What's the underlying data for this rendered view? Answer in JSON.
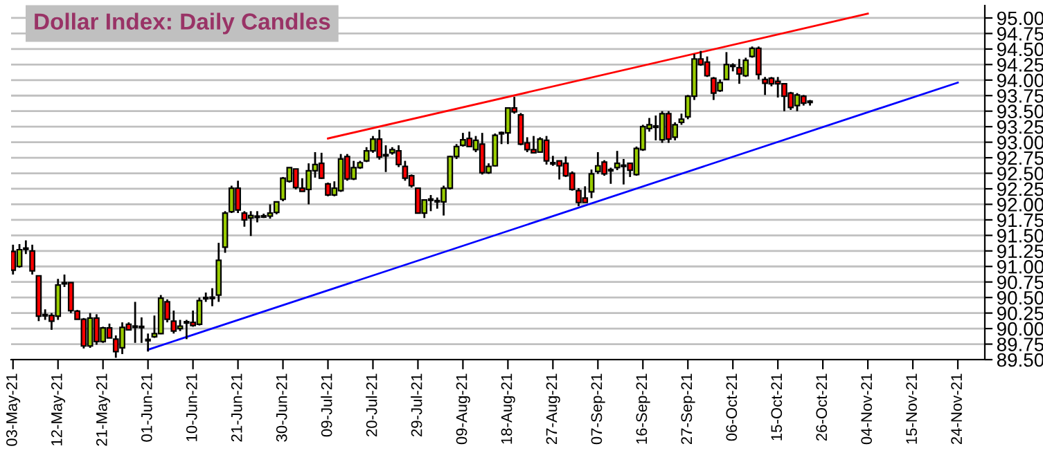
{
  "chart_data": {
    "type": "candlestick",
    "title": "Dollar Index: Daily Candles",
    "categories": [
      "03-May-21",
      null,
      null,
      null,
      null,
      null,
      null,
      "12-May-21",
      null,
      null,
      null,
      null,
      null,
      null,
      "21-May-21",
      null,
      null,
      null,
      null,
      null,
      null,
      "01-Jun-21",
      null,
      null,
      null,
      null,
      null,
      null,
      "10-Jun-21",
      null,
      null,
      null,
      null,
      null,
      null,
      "21-Jun-21",
      null,
      null,
      null,
      null,
      null,
      null,
      "30-Jun-21",
      null,
      null,
      null,
      null,
      null,
      null,
      "09-Jul-21",
      null,
      null,
      null,
      null,
      null,
      null,
      "20-Jul-21",
      null,
      null,
      null,
      null,
      null,
      null,
      "29-Jul-21",
      null,
      null,
      null,
      null,
      null,
      null,
      "09-Aug-21",
      null,
      null,
      null,
      null,
      null,
      null,
      "18-Aug-21",
      null,
      null,
      null,
      null,
      null,
      null,
      "27-Aug-21",
      null,
      null,
      null,
      null,
      null,
      null,
      "07-Sep-21",
      null,
      null,
      null,
      null,
      null,
      null,
      "16-Sep-21",
      null,
      null,
      null,
      null,
      null,
      null,
      "27-Sep-21",
      null,
      null,
      null,
      null,
      null,
      null,
      "06-Oct-21",
      null,
      null,
      null,
      null,
      null,
      null,
      "15-Oct-21",
      null,
      null,
      null,
      null,
      null,
      null,
      "26-Oct-21",
      null,
      null,
      null,
      null,
      null,
      null,
      "04-Nov-21",
      null,
      null,
      null,
      null,
      null,
      null,
      "15-Nov-21",
      null,
      null,
      null,
      null,
      null,
      null,
      "24-Nov-21",
      null,
      null,
      null,
      null
    ],
    "ohlc": [
      [
        91.24,
        91.35,
        90.87,
        90.94
      ],
      [
        91.0,
        91.36,
        90.98,
        91.27
      ],
      [
        91.28,
        91.42,
        91.2,
        91.29
      ],
      [
        91.25,
        91.35,
        90.87,
        90.93
      ],
      [
        90.85,
        90.85,
        90.12,
        90.2
      ],
      [
        90.22,
        90.31,
        90.14,
        90.21
      ],
      [
        90.21,
        90.25,
        89.98,
        90.12
      ],
      [
        90.2,
        90.8,
        90.14,
        90.7
      ],
      [
        90.72,
        90.87,
        90.67,
        90.74
      ],
      [
        90.74,
        90.74,
        90.25,
        90.29
      ],
      [
        90.28,
        90.3,
        90.15,
        90.15
      ],
      [
        90.15,
        90.17,
        89.68,
        89.72
      ],
      [
        89.72,
        90.25,
        89.69,
        90.17
      ],
      [
        90.17,
        90.23,
        89.74,
        89.79
      ],
      [
        89.79,
        90.03,
        89.77,
        90.01
      ],
      [
        90.01,
        90.08,
        89.85,
        89.85
      ],
      [
        89.83,
        89.89,
        89.53,
        89.63
      ],
      [
        89.69,
        90.1,
        89.59,
        90.02
      ],
      [
        90.07,
        90.1,
        89.98,
        89.98
      ],
      [
        90.03,
        90.43,
        89.77,
        90.03
      ],
      [
        90.02,
        90.18,
        89.77,
        90.03
      ],
      [
        89.81,
        89.92,
        89.63,
        89.82
      ],
      [
        89.87,
        90.21,
        89.85,
        89.92
      ],
      [
        89.92,
        90.54,
        89.91,
        90.49
      ],
      [
        90.43,
        90.47,
        90.1,
        90.15
      ],
      [
        90.12,
        90.29,
        89.92,
        89.96
      ],
      [
        90.0,
        90.14,
        89.96,
        90.04
      ],
      [
        90.1,
        90.14,
        89.83,
        90.1
      ],
      [
        90.1,
        90.29,
        90.03,
        90.05
      ],
      [
        90.07,
        90.5,
        90.05,
        90.45
      ],
      [
        90.49,
        90.58,
        90.43,
        90.49
      ],
      [
        90.49,
        90.65,
        90.36,
        90.5
      ],
      [
        90.54,
        91.38,
        90.43,
        91.1
      ],
      [
        91.31,
        91.89,
        91.22,
        91.86
      ],
      [
        91.88,
        92.3,
        91.86,
        92.26
      ],
      [
        92.26,
        92.38,
        91.86,
        91.91
      ],
      [
        91.86,
        91.89,
        91.64,
        91.75
      ],
      [
        91.78,
        91.89,
        91.49,
        91.82
      ],
      [
        91.8,
        91.89,
        91.71,
        91.8
      ],
      [
        91.8,
        91.85,
        91.78,
        91.81
      ],
      [
        91.81,
        92.0,
        91.77,
        91.86
      ],
      [
        91.87,
        92.04,
        91.84,
        92.04
      ],
      [
        92.08,
        92.44,
        92.05,
        92.42
      ],
      [
        92.37,
        92.59,
        92.35,
        92.59
      ],
      [
        92.57,
        92.57,
        92.24,
        92.27
      ],
      [
        92.26,
        92.42,
        92.21,
        92.21
      ],
      [
        92.24,
        92.66,
        92.0,
        92.54
      ],
      [
        92.54,
        92.84,
        92.43,
        92.64
      ],
      [
        92.66,
        92.83,
        92.41,
        92.42
      ],
      [
        92.33,
        92.35,
        92.13,
        92.15
      ],
      [
        92.15,
        92.37,
        92.13,
        92.26
      ],
      [
        92.22,
        92.81,
        92.2,
        92.73
      ],
      [
        92.77,
        92.81,
        92.38,
        92.41
      ],
      [
        92.41,
        92.7,
        92.39,
        92.59
      ],
      [
        92.59,
        92.7,
        92.57,
        92.67
      ],
      [
        92.7,
        92.92,
        92.68,
        92.86
      ],
      [
        92.86,
        93.1,
        92.83,
        93.05
      ],
      [
        93.05,
        93.2,
        92.72,
        92.76
      ],
      [
        92.8,
        92.95,
        92.52,
        92.78
      ],
      [
        92.83,
        92.92,
        92.8,
        92.88
      ],
      [
        92.86,
        92.95,
        92.6,
        92.64
      ],
      [
        92.61,
        92.7,
        92.38,
        92.42
      ],
      [
        92.46,
        92.48,
        92.27,
        92.3
      ],
      [
        92.26,
        92.26,
        91.85,
        91.86
      ],
      [
        91.86,
        92.07,
        91.78,
        92.07
      ],
      [
        92.07,
        92.15,
        91.89,
        92.08
      ],
      [
        92.05,
        92.11,
        91.93,
        92.05
      ],
      [
        92.04,
        92.3,
        91.82,
        92.26
      ],
      [
        92.26,
        92.78,
        92.24,
        92.77
      ],
      [
        92.77,
        92.97,
        92.73,
        92.93
      ],
      [
        92.95,
        93.15,
        92.93,
        93.04
      ],
      [
        93.06,
        93.17,
        92.92,
        92.93
      ],
      [
        92.88,
        93.1,
        92.84,
        93.03
      ],
      [
        92.97,
        93.15,
        92.48,
        92.51
      ],
      [
        92.51,
        92.66,
        92.49,
        92.61
      ],
      [
        92.62,
        93.14,
        92.61,
        93.11
      ],
      [
        93.14,
        93.17,
        92.97,
        93.15
      ],
      [
        93.15,
        93.55,
        92.97,
        93.55
      ],
      [
        93.55,
        93.73,
        93.46,
        93.49
      ],
      [
        93.44,
        93.47,
        92.95,
        92.97
      ],
      [
        92.99,
        93.08,
        92.84,
        92.88
      ],
      [
        92.88,
        93.1,
        92.83,
        92.83
      ],
      [
        92.84,
        93.08,
        92.83,
        93.05
      ],
      [
        93.03,
        93.1,
        92.64,
        92.7
      ],
      [
        92.66,
        92.78,
        92.62,
        92.66
      ],
      [
        92.7,
        92.7,
        92.4,
        92.62
      ],
      [
        92.66,
        92.77,
        92.44,
        92.46
      ],
      [
        92.5,
        92.53,
        92.22,
        92.24
      ],
      [
        92.22,
        92.26,
        91.97,
        92.03
      ],
      [
        92.1,
        92.29,
        92.03,
        92.03
      ],
      [
        92.2,
        92.56,
        92.1,
        92.49
      ],
      [
        92.53,
        92.84,
        92.49,
        92.62
      ],
      [
        92.68,
        92.71,
        92.46,
        92.49
      ],
      [
        92.55,
        92.59,
        92.33,
        92.55
      ],
      [
        92.59,
        92.86,
        92.55,
        92.66
      ],
      [
        92.62,
        92.73,
        92.32,
        92.62
      ],
      [
        92.66,
        92.66,
        92.44,
        92.55
      ],
      [
        92.48,
        92.93,
        92.46,
        92.9
      ],
      [
        92.88,
        93.28,
        92.86,
        93.25
      ],
      [
        93.22,
        93.39,
        93.17,
        93.28
      ],
      [
        93.25,
        93.43,
        93.03,
        93.25
      ],
      [
        93.04,
        93.5,
        92.99,
        93.46
      ],
      [
        93.46,
        93.5,
        92.99,
        93.05
      ],
      [
        93.08,
        93.32,
        93.03,
        93.28
      ],
      [
        93.32,
        93.46,
        93.28,
        93.37
      ],
      [
        93.41,
        93.76,
        93.37,
        93.74
      ],
      [
        93.74,
        94.42,
        93.68,
        94.34
      ],
      [
        94.34,
        94.47,
        94.23,
        94.25
      ],
      [
        94.29,
        94.38,
        94.05,
        94.07
      ],
      [
        94.03,
        94.05,
        93.68,
        93.79
      ],
      [
        93.83,
        94.01,
        93.81,
        93.96
      ],
      [
        94.01,
        94.45,
        94.0,
        94.25
      ],
      [
        94.23,
        94.27,
        94.14,
        94.23
      ],
      [
        94.2,
        94.34,
        93.94,
        94.1
      ],
      [
        94.07,
        94.36,
        94.05,
        94.32
      ],
      [
        94.38,
        94.54,
        94.36,
        94.51
      ],
      [
        94.51,
        94.54,
        94.01,
        94.09
      ],
      [
        94.01,
        94.05,
        93.76,
        93.95
      ],
      [
        94.03,
        94.05,
        93.9,
        93.94
      ],
      [
        93.98,
        94.05,
        93.72,
        93.94
      ],
      [
        93.94,
        93.94,
        93.5,
        93.74
      ],
      [
        93.79,
        93.81,
        93.52,
        93.56
      ],
      [
        93.59,
        93.79,
        93.5,
        93.76
      ],
      [
        93.74,
        93.76,
        93.59,
        93.63
      ],
      [
        93.65,
        93.68,
        93.59,
        93.65
      ],
      null,
      null,
      null,
      null,
      null,
      null,
      null,
      null,
      null,
      null,
      null,
      null,
      null,
      null,
      null,
      null,
      null,
      null,
      null,
      null,
      null,
      null,
      null,
      null,
      null,
      null,
      null
    ],
    "colors": [
      "#ff0000",
      "#99cc00",
      "#000000",
      "#ff0000",
      "#ff0000",
      "#000000",
      "#ff0000",
      "#99cc00",
      "#99cc00",
      "#ff0000",
      "#ff0000",
      "#ff0000",
      "#99cc00",
      "#ff0000",
      "#99cc00",
      "#ff0000",
      "#ff0000",
      "#99cc00",
      "#ff0000",
      "#000000",
      "#000000",
      "#000000",
      "#99cc00",
      "#99cc00",
      "#ff0000",
      "#ff0000",
      "#99cc00",
      "#000000",
      "#ff0000",
      "#99cc00",
      "#000000",
      "#000000",
      "#99cc00",
      "#99cc00",
      "#99cc00",
      "#ff0000",
      "#ff0000",
      "#99cc00",
      "#000000",
      "#000000",
      "#99cc00",
      "#99cc00",
      "#99cc00",
      "#99cc00",
      "#ff0000",
      "#ff0000",
      "#99cc00",
      "#99cc00",
      "#ff0000",
      "#ff0000",
      "#99cc00",
      "#99cc00",
      "#ff0000",
      "#99cc00",
      "#99cc00",
      "#99cc00",
      "#99cc00",
      "#ff0000",
      "#ff0000",
      "#99cc00",
      "#ff0000",
      "#ff0000",
      "#ff0000",
      "#ff0000",
      "#99cc00",
      "#000000",
      "#000000",
      "#99cc00",
      "#99cc00",
      "#99cc00",
      "#99cc00",
      "#ff0000",
      "#99cc00",
      "#ff0000",
      "#99cc00",
      "#99cc00",
      "#000000",
      "#99cc00",
      "#ff0000",
      "#ff0000",
      "#ff0000",
      "#ff0000",
      "#99cc00",
      "#ff0000",
      "#000000",
      "#ff0000",
      "#ff0000",
      "#ff0000",
      "#ff0000",
      "#ff0000",
      "#99cc00",
      "#99cc00",
      "#ff0000",
      "#000000",
      "#99cc00",
      "#000000",
      "#ff0000",
      "#99cc00",
      "#99cc00",
      "#99cc00",
      "#000000",
      "#99cc00",
      "#ff0000",
      "#99cc00",
      "#99cc00",
      "#99cc00",
      "#99cc00",
      "#ff0000",
      "#ff0000",
      "#ff0000",
      "#99cc00",
      "#99cc00",
      "#000000",
      "#ff0000",
      "#99cc00",
      "#99cc00",
      "#ff0000",
      "#ff0000",
      "#ff0000",
      "#ff0000",
      "#ff0000",
      "#ff0000",
      "#99cc00",
      "#ff0000",
      "#000000",
      null,
      null,
      null,
      null,
      null,
      null,
      null,
      null,
      null,
      null,
      null,
      null,
      null,
      null,
      null,
      null,
      null,
      null,
      null,
      null,
      null,
      null,
      null,
      null,
      null,
      null,
      null
    ],
    "series": [
      {
        "type": "line",
        "x": [
          "09-Jul-21",
          "04-Nov-21"
        ],
        "values": [
          93.06,
          95.07
        ],
        "color": "#ff0000"
      },
      {
        "type": "line",
        "x": [
          "01-Jun-21",
          "24-Nov-21"
        ],
        "values": [
          89.66,
          93.96
        ],
        "color": "#0000ff"
      }
    ],
    "ylim": [
      89.5,
      95.2
    ],
    "yticks": [
      {
        "value": 89.5,
        "label": "89.50"
      },
      {
        "value": 89.75,
        "label": "89.75"
      },
      {
        "value": 90.0,
        "label": "90.00"
      },
      {
        "value": 90.25,
        "label": "90.25"
      },
      {
        "value": 90.5,
        "label": "90.50"
      },
      {
        "value": 90.75,
        "label": "90.75"
      },
      {
        "value": 91.0,
        "label": "91.00"
      },
      {
        "value": 91.25,
        "label": "91.25"
      },
      {
        "value": 91.5,
        "label": "91.50"
      },
      {
        "value": 91.75,
        "label": "91.75"
      },
      {
        "value": 92.0,
        "label": "92.00"
      },
      {
        "value": 92.25,
        "label": "92.25"
      },
      {
        "value": 92.5,
        "label": "92.50"
      },
      {
        "value": 92.75,
        "label": "92.75"
      },
      {
        "value": 93.0,
        "label": "93.00"
      },
      {
        "value": 93.25,
        "label": "93.25"
      },
      {
        "value": 93.5,
        "label": "93.50"
      },
      {
        "value": 93.75,
        "label": "93.75"
      },
      {
        "value": 94.0,
        "label": "94.00"
      },
      {
        "value": 94.25,
        "label": "94.25"
      },
      {
        "value": 94.5,
        "label": "94.50"
      },
      {
        "value": 94.75,
        "label": "94.75"
      },
      {
        "value": 95.0,
        "label": "95.00"
      }
    ],
    "grid": "y"
  }
}
